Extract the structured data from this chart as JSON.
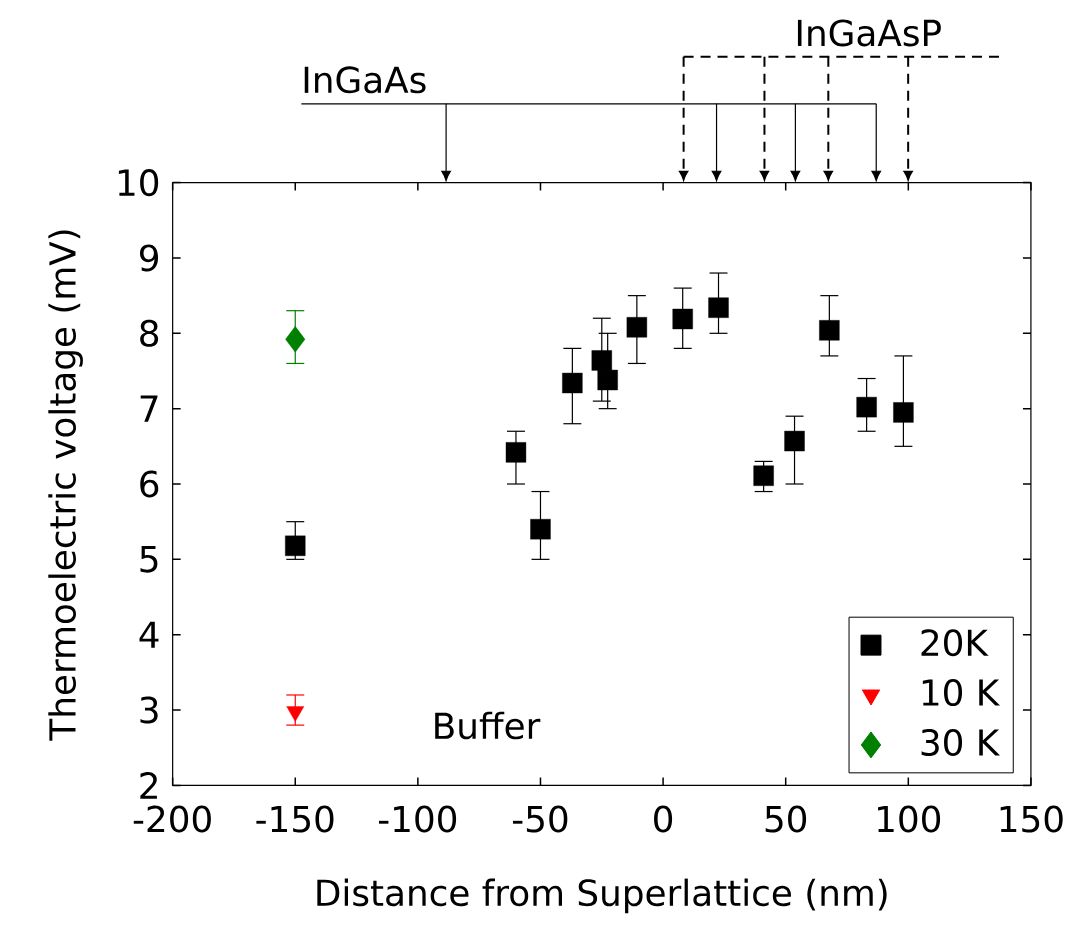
{
  "chart_data": {
    "type": "scatter",
    "xlabel": "Distance from Superlattice (nm)",
    "ylabel": "Thermoelectric voltage (mV)",
    "xlim": [
      -200,
      150
    ],
    "xticks": [
      -200,
      -150,
      -100,
      -50,
      0,
      50,
      100,
      150
    ],
    "ylim": [
      2,
      10
    ],
    "yticks": [
      2,
      3,
      4,
      5,
      6,
      7,
      8,
      9,
      10
    ],
    "grid": false,
    "legend": "bottom right",
    "annotations": [
      "InGaAs",
      "InGaAsP",
      "Buffer"
    ],
    "series": [
      {
        "name": "20K",
        "color": "#000000",
        "marker": "square",
        "x": [
          -150,
          -60,
          -50,
          -37,
          -25,
          -22.6,
          -10.7,
          8,
          22.6,
          41,
          53.6,
          67.8,
          83,
          98
        ],
        "values": [
          5.18,
          6.42,
          5.4,
          7.34,
          7.64,
          7.38,
          8.08,
          8.19,
          8.34,
          6.11,
          6.57,
          8.04,
          7.02,
          6.95
        ],
        "errors": [
          [
            5.0,
            5.5
          ],
          [
            6.0,
            6.7
          ],
          [
            5.0,
            5.9
          ],
          [
            6.8,
            7.8
          ],
          [
            7.1,
            8.2
          ],
          [
            7.0,
            8.0
          ],
          [
            7.6,
            8.5
          ],
          [
            7.8,
            8.6
          ],
          [
            8.0,
            8.8
          ],
          [
            5.9,
            6.3
          ],
          [
            6.0,
            6.9
          ],
          [
            7.7,
            8.5
          ],
          [
            6.7,
            7.4
          ],
          [
            6.5,
            7.7
          ]
        ]
      },
      {
        "name": "10 K",
        "color": "#ff0000",
        "marker": "triangle",
        "x": [
          -150
        ],
        "values": [
          2.98
        ],
        "errors": [
          [
            2.8,
            3.2
          ]
        ]
      },
      {
        "name": "30 K",
        "color": "#008000",
        "marker": "diamond",
        "x": [
          -150
        ],
        "values": [
          7.92
        ],
        "errors": [
          [
            7.6,
            8.3
          ]
        ]
      }
    ]
  }
}
